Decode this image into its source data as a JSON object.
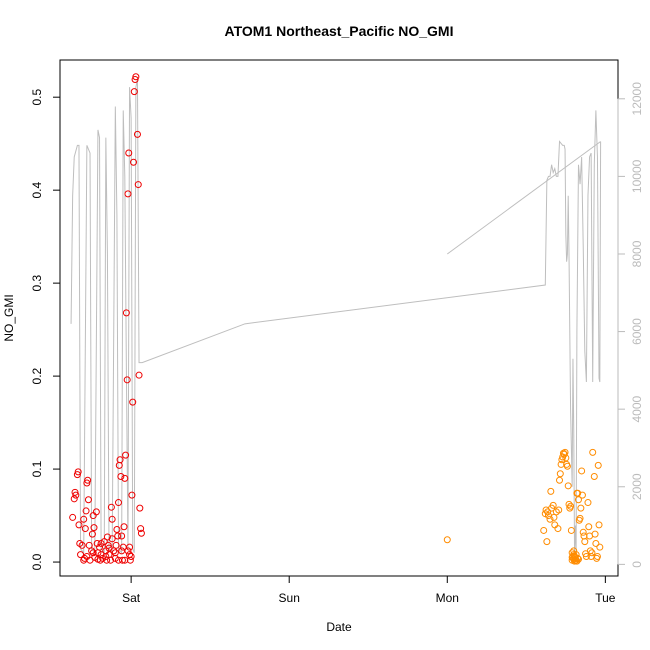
{
  "chart_data": {
    "type": "scatter",
    "title": "ATOM1 Northeast_Pacific NO_GMI",
    "xlabel": "Date",
    "ylabel": "NO_GMI",
    "x_ticks": [
      "Sat",
      "Sun",
      "Mon",
      "Tue"
    ],
    "x_tick_days": [
      1,
      2,
      3,
      4
    ],
    "xlim_days": [
      0.55,
      4.08
    ],
    "ylim": [
      -0.015,
      0.54
    ],
    "y_ticks": [
      0.0,
      0.1,
      0.2,
      0.3,
      0.4,
      0.5
    ],
    "y_tick_labels": [
      "0.0",
      "0.1",
      "0.2",
      "0.3",
      "0.4",
      "0.5"
    ],
    "y2lim": [
      -300,
      13000
    ],
    "y2_ticks": [
      0,
      2000,
      4000,
      6000,
      8000,
      10000,
      12000
    ],
    "y2_tick_labels": [
      "0",
      "2000",
      "4000",
      "6000",
      "8000",
      "10000",
      "12000"
    ],
    "colors": {
      "red_series": "#ee0000",
      "orange_series": "#ff8c00",
      "altitude_line": "#bebebe"
    },
    "series": [
      {
        "marker": "circle-open",
        "color": "#ee0000",
        "points": [
          [
            0.63,
            0.048
          ],
          [
            0.64,
            0.068
          ],
          [
            0.645,
            0.075
          ],
          [
            0.65,
            0.072
          ],
          [
            0.66,
            0.094
          ],
          [
            0.665,
            0.097
          ],
          [
            0.67,
            0.04
          ],
          [
            0.675,
            0.02
          ],
          [
            0.68,
            0.008
          ],
          [
            0.69,
            0.018
          ],
          [
            0.7,
            0.046
          ],
          [
            0.705,
            0.004
          ],
          [
            0.71,
            0.036
          ],
          [
            0.715,
            0.055
          ],
          [
            0.72,
            0.085
          ],
          [
            0.725,
            0.088
          ],
          [
            0.73,
            0.067
          ],
          [
            0.735,
            0.018
          ],
          [
            0.74,
            0.002
          ],
          [
            0.75,
            0.012
          ],
          [
            0.755,
            0.03
          ],
          [
            0.76,
            0.05
          ],
          [
            0.765,
            0.037
          ],
          [
            0.77,
            0.005
          ],
          [
            0.78,
            0.054
          ],
          [
            0.785,
            0.02
          ],
          [
            0.79,
            0.01
          ],
          [
            0.8,
            0.016
          ],
          [
            0.805,
            0.002
          ],
          [
            0.81,
            0.008
          ],
          [
            0.82,
            0.004
          ],
          [
            0.83,
            0.022
          ],
          [
            0.84,
            0.012
          ],
          [
            0.845,
            0.002
          ],
          [
            0.85,
            0.027
          ],
          [
            0.855,
            0.018
          ],
          [
            0.86,
            0.008
          ],
          [
            0.87,
            0.002
          ],
          [
            0.875,
            0.059
          ],
          [
            0.88,
            0.046
          ],
          [
            0.89,
            0.012
          ],
          [
            0.9,
            0.004
          ],
          [
            0.905,
            0.018
          ],
          [
            0.91,
            0.035
          ],
          [
            0.915,
            0.028
          ],
          [
            0.92,
            0.064
          ],
          [
            0.925,
            0.104
          ],
          [
            0.93,
            0.11
          ],
          [
            0.935,
            0.092
          ],
          [
            0.94,
            0.012
          ],
          [
            0.945,
            0.002
          ],
          [
            0.95,
            0.016
          ],
          [
            0.955,
            0.038
          ],
          [
            0.96,
            0.09
          ],
          [
            0.965,
            0.115
          ],
          [
            0.97,
            0.268
          ],
          [
            0.975,
            0.196
          ],
          [
            0.98,
            0.396
          ],
          [
            0.985,
            0.44
          ],
          [
            0.99,
            0.008
          ],
          [
            0.995,
            0.002
          ],
          [
            1.0,
            0.006
          ],
          [
            1.005,
            0.072
          ],
          [
            1.01,
            0.172
          ],
          [
            1.015,
            0.43
          ],
          [
            1.02,
            0.506
          ],
          [
            1.025,
            0.519
          ],
          [
            1.03,
            0.522
          ],
          [
            1.04,
            0.46
          ],
          [
            1.045,
            0.406
          ],
          [
            1.05,
            0.201
          ],
          [
            1.055,
            0.058
          ],
          [
            1.06,
            0.036
          ],
          [
            1.065,
            0.031
          ],
          [
            0.7,
            0.002
          ],
          [
            0.72,
            0.006
          ],
          [
            0.76,
            0.01
          ],
          [
            0.79,
            0.003
          ],
          [
            0.81,
            0.02
          ],
          [
            0.84,
            0.006
          ],
          [
            0.86,
            0.015
          ],
          [
            0.88,
            0.025
          ],
          [
            0.9,
            0.01
          ],
          [
            0.92,
            0.002
          ],
          [
            0.94,
            0.028
          ],
          [
            0.96,
            0.002
          ],
          [
            0.98,
            0.012
          ],
          [
            0.99,
            0.016
          ]
        ]
      },
      {
        "marker": "circle-open",
        "color": "#ff8c00",
        "points": [
          [
            3.0,
            0.024
          ],
          [
            3.61,
            0.034
          ],
          [
            3.62,
            0.052
          ],
          [
            3.625,
            0.056
          ],
          [
            3.63,
            0.022
          ],
          [
            3.635,
            0.054
          ],
          [
            3.64,
            0.05
          ],
          [
            3.65,
            0.046
          ],
          [
            3.655,
            0.076
          ],
          [
            3.66,
            0.058
          ],
          [
            3.67,
            0.061
          ],
          [
            3.675,
            0.048
          ],
          [
            3.68,
            0.04
          ],
          [
            3.69,
            0.054
          ],
          [
            3.7,
            0.036
          ],
          [
            3.705,
            0.056
          ],
          [
            3.71,
            0.088
          ],
          [
            3.715,
            0.095
          ],
          [
            3.72,
            0.105
          ],
          [
            3.725,
            0.11
          ],
          [
            3.73,
            0.113
          ],
          [
            3.735,
            0.117
          ],
          [
            3.74,
            0.116
          ],
          [
            3.745,
            0.118
          ],
          [
            3.75,
            0.112
          ],
          [
            3.755,
            0.105
          ],
          [
            3.76,
            0.103
          ],
          [
            3.765,
            0.082
          ],
          [
            3.77,
            0.062
          ],
          [
            3.775,
            0.058
          ],
          [
            3.78,
            0.06
          ],
          [
            3.785,
            0.034
          ],
          [
            3.79,
            0.01
          ],
          [
            3.795,
            0.006
          ],
          [
            3.8,
            0.003
          ],
          [
            3.805,
            0.001
          ],
          [
            3.81,
            0.005
          ],
          [
            3.815,
            0.008
          ],
          [
            3.82,
            0.074
          ],
          [
            3.825,
            0.074
          ],
          [
            3.83,
            0.067
          ],
          [
            3.835,
            0.045
          ],
          [
            3.84,
            0.047
          ],
          [
            3.845,
            0.058
          ],
          [
            3.85,
            0.098
          ],
          [
            3.855,
            0.072
          ],
          [
            3.86,
            0.032
          ],
          [
            3.865,
            0.028
          ],
          [
            3.87,
            0.022
          ],
          [
            3.875,
            0.009
          ],
          [
            3.88,
            0.006
          ],
          [
            3.89,
            0.064
          ],
          [
            3.895,
            0.038
          ],
          [
            3.9,
            0.028
          ],
          [
            3.905,
            0.012
          ],
          [
            3.91,
            0.006
          ],
          [
            3.915,
            0.01
          ],
          [
            3.92,
            0.118
          ],
          [
            3.93,
            0.092
          ],
          [
            3.935,
            0.03
          ],
          [
            3.94,
            0.02
          ],
          [
            3.945,
            0.004
          ],
          [
            3.95,
            0.006
          ],
          [
            3.955,
            0.104
          ],
          [
            3.96,
            0.04
          ],
          [
            3.965,
            0.016
          ],
          [
            3.79,
            0.002
          ],
          [
            3.8,
            0.008
          ],
          [
            3.81,
            0.002
          ],
          [
            3.82,
            0.001
          ],
          [
            3.83,
            0.003
          ],
          [
            3.8,
            0.012
          ],
          [
            3.79,
            0.005
          ],
          [
            3.815,
            0.002
          ],
          [
            3.805,
            0.006
          ],
          [
            3.825,
            0.004
          ]
        ]
      }
    ],
    "altitude_line": {
      "color": "#bebebe",
      "segments": [
        [
          [
            0.62,
            6200
          ],
          [
            0.63,
            9500
          ],
          [
            0.64,
            10500
          ],
          [
            0.66,
            10800
          ],
          [
            0.67,
            10800
          ],
          [
            0.68,
            400
          ],
          [
            0.7,
            300
          ],
          [
            0.72,
            10800
          ],
          [
            0.74,
            10600
          ],
          [
            0.75,
            400
          ],
          [
            0.77,
            300
          ],
          [
            0.79,
            11200
          ],
          [
            0.8,
            11000
          ],
          [
            0.81,
            400
          ],
          [
            0.83,
            300
          ],
          [
            0.84,
            11000
          ],
          [
            0.85,
            8000
          ],
          [
            0.86,
            400
          ],
          [
            0.88,
            300
          ],
          [
            0.9,
            11800
          ],
          [
            0.91,
            9000
          ],
          [
            0.92,
            400
          ],
          [
            0.94,
            300
          ],
          [
            0.95,
            11700
          ],
          [
            0.96,
            10000
          ],
          [
            0.97,
            5000
          ],
          [
            0.98,
            400
          ],
          [
            0.99,
            12300
          ],
          [
            1.0,
            11500
          ],
          [
            1.01,
            400
          ],
          [
            1.02,
            300
          ],
          [
            1.03,
            12300
          ],
          [
            1.04,
            12500
          ],
          [
            1.05,
            5200
          ],
          [
            1.06,
            5200
          ],
          [
            1.07,
            5200
          ],
          [
            1.72,
            6200
          ],
          [
            3.62,
            7200
          ],
          [
            3.63,
            9900
          ],
          [
            3.64,
            10000
          ],
          [
            3.65,
            10000
          ],
          [
            3.66,
            10300
          ],
          [
            3.67,
            10100
          ],
          [
            3.68,
            10200
          ],
          [
            3.69,
            10000
          ],
          [
            3.7,
            10000
          ],
          [
            3.71,
            10900
          ],
          [
            3.72,
            10850
          ],
          [
            3.73,
            10800
          ],
          [
            3.74,
            10800
          ],
          [
            3.745,
            10700
          ],
          [
            3.75,
            8500
          ],
          [
            3.755,
            7800
          ],
          [
            3.76,
            8000
          ],
          [
            3.765,
            9500
          ],
          [
            3.77,
            8000
          ],
          [
            3.78,
            4000
          ],
          [
            3.79,
            2000
          ],
          [
            3.795,
            5300
          ],
          [
            3.8,
            3500
          ],
          [
            3.805,
            300
          ],
          [
            3.81,
            1000
          ],
          [
            3.815,
            300
          ],
          [
            3.82,
            6000
          ],
          [
            3.83,
            10300
          ],
          [
            3.84,
            9800
          ],
          [
            3.85,
            10500
          ],
          [
            3.86,
            8200
          ],
          [
            3.87,
            5500
          ],
          [
            3.88,
            4700
          ],
          [
            3.89,
            9500
          ],
          [
            3.9,
            10500
          ],
          [
            3.91,
            10600
          ],
          [
            3.92,
            4700
          ],
          [
            3.93,
            10300
          ],
          [
            3.94,
            11700
          ],
          [
            3.95,
            10500
          ],
          [
            3.96,
            4800
          ],
          [
            3.965,
            4700
          ],
          [
            3.97,
            10900
          ]
        ],
        [
          [
            3.0,
            8000
          ],
          [
            3.97,
            10900
          ]
        ]
      ]
    }
  }
}
